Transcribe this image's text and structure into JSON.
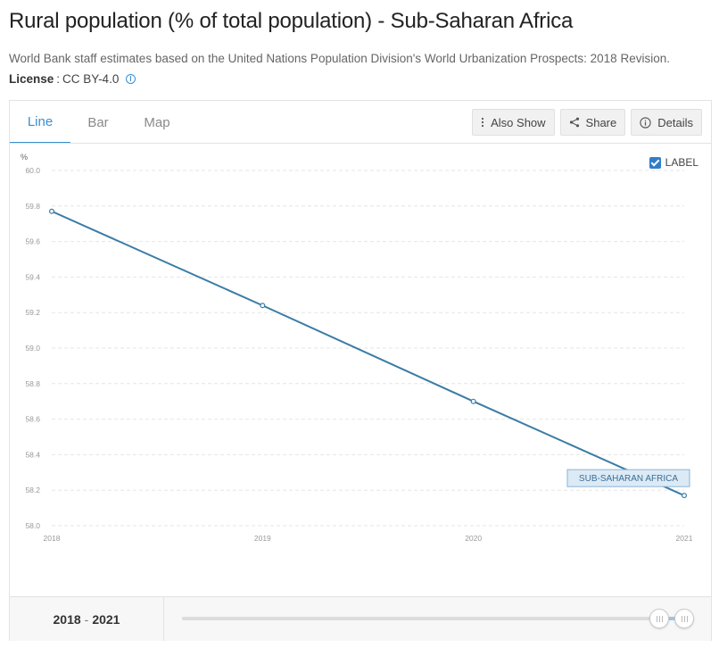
{
  "header": {
    "title": "Rural population (% of total population) - Sub-Saharan Africa",
    "source": "World Bank staff estimates based on the United Nations Population Division's World Urbanization Prospects: 2018 Revision.",
    "license_label": "License",
    "license_sep": ":",
    "license_value": "CC BY-4.0"
  },
  "tabs": [
    {
      "label": "Line",
      "active": true
    },
    {
      "label": "Bar",
      "active": false
    },
    {
      "label": "Map",
      "active": false
    }
  ],
  "actions": {
    "also_show": "Also Show",
    "share": "Share",
    "details": "Details"
  },
  "label_toggle": {
    "label": "LABEL",
    "checked": true
  },
  "footer": {
    "range_start": "2018",
    "range_sep": "-",
    "range_end": "2021"
  },
  "colors": {
    "accent": "#3a8fd1",
    "line": "#3a7ca5",
    "series_label_bg": "#dceaf5",
    "series_label_border": "#8db3d3"
  },
  "chart_data": {
    "type": "line",
    "ylabel": "%",
    "xlabel": "",
    "title": "",
    "ylim": [
      58.0,
      60.0
    ],
    "yticks": [
      58.0,
      58.2,
      58.4,
      58.6,
      58.8,
      59.0,
      59.2,
      59.4,
      59.6,
      59.8,
      60.0
    ],
    "ytick_labels": [
      "58.0",
      "58.2",
      "58.4",
      "58.6",
      "58.8",
      "59.0",
      "59.2",
      "59.4",
      "59.6",
      "59.8",
      "60.0"
    ],
    "categories": [
      "2018",
      "2019",
      "2020",
      "2021"
    ],
    "grid": true,
    "series": [
      {
        "name": "SUB-SAHARAN AFRICA",
        "values": [
          59.77,
          59.24,
          58.7,
          58.17
        ]
      }
    ]
  }
}
